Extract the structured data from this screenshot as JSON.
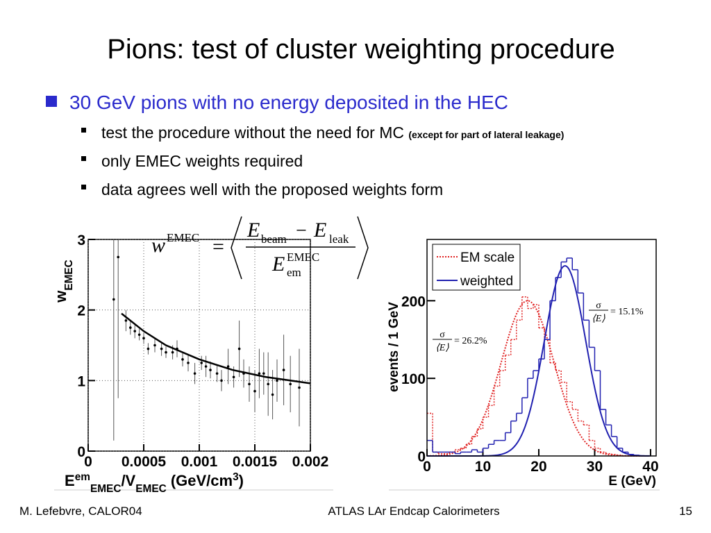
{
  "title": "Pions: test of cluster weighting procedure",
  "bullets": [
    {
      "text": "30 GeV pions with no energy deposited in the HEC",
      "children": [
        {
          "text": "test the procedure without the need for MC",
          "note": "(except for part of lateral leakage)"
        },
        {
          "text": "only EMEC weights required"
        },
        {
          "text": "data agrees well with the proposed weights form"
        }
      ]
    }
  ],
  "formula": {
    "lhs": "w",
    "lhs_sup": "EMEC",
    "eq": "=",
    "num_a": "E",
    "num_a_sub": "beam",
    "minus": "−",
    "num_b": "E",
    "num_b_sub": "leak",
    "den": "E",
    "den_sub": "em",
    "den_sup": "EMEC"
  },
  "footer": {
    "left": "M. Lefebvre, CALOR04",
    "center": "ATLAS LAr Endcap Calorimeters",
    "right": "15"
  },
  "chart_data": [
    {
      "type": "scatter",
      "xlim": [
        0,
        0.002
      ],
      "ylim": [
        0,
        3
      ],
      "xticks": [
        0,
        0.0005,
        0.001,
        0.0015,
        0.002
      ],
      "yticks": [
        0,
        1,
        2,
        3
      ],
      "grid": true,
      "color": "#000000",
      "ylabel": [
        {
          "text": "w"
        },
        {
          "text": "EMEC",
          "shift": "sub"
        }
      ],
      "xlabel": [
        {
          "text": "E"
        },
        {
          "text": "em",
          "shift": "sup"
        },
        {
          "text": "EMEC",
          "shift": "sub"
        },
        {
          "text": "/V"
        },
        {
          "text": "EMEC",
          "shift": "sub"
        },
        {
          "text": " (GeV/cm"
        },
        {
          "text": "3",
          "shift": "sup"
        },
        {
          "text": ")"
        }
      ],
      "x": [
        0.00023,
        0.00027,
        0.00034,
        0.00038,
        0.00042,
        0.00046,
        0.0005,
        0.00054,
        0.0006,
        0.00066,
        0.0007,
        0.00076,
        0.0008,
        0.00085,
        0.0009,
        0.00096,
        0.00102,
        0.00106,
        0.0011,
        0.00116,
        0.0012,
        0.00126,
        0.00131,
        0.00136,
        0.0014,
        0.00145,
        0.0015,
        0.00154,
        0.00158,
        0.00162,
        0.00166,
        0.0017,
        0.00176,
        0.00182,
        0.0019
      ],
      "values": [
        2.15,
        2.75,
        1.85,
        1.75,
        1.7,
        1.65,
        1.6,
        1.45,
        1.5,
        1.45,
        1.4,
        1.4,
        1.45,
        1.3,
        1.25,
        1.1,
        1.25,
        1.2,
        1.15,
        1.1,
        1.0,
        1.2,
        1.05,
        1.45,
        1.1,
        0.95,
        0.85,
        1.1,
        1.1,
        0.95,
        0.8,
        1.0,
        1.15,
        0.95,
        0.9
      ],
      "errors": [
        2.0,
        2.0,
        0.15,
        0.1,
        0.1,
        0.08,
        0.08,
        0.08,
        0.1,
        0.1,
        0.08,
        0.1,
        0.12,
        0.1,
        0.12,
        0.15,
        0.1,
        0.15,
        0.12,
        0.12,
        0.15,
        0.25,
        0.15,
        0.4,
        0.2,
        0.25,
        0.3,
        0.35,
        0.3,
        0.45,
        0.35,
        0.3,
        0.5,
        0.4,
        0.55
      ],
      "fit": {
        "x": [
          0.0003,
          0.0005,
          0.0007,
          0.001,
          0.0013,
          0.0016,
          0.002
        ],
        "values": [
          1.95,
          1.7,
          1.5,
          1.3,
          1.15,
          1.05,
          0.96
        ]
      }
    },
    {
      "type": "histogram",
      "xlim": [
        0,
        41
      ],
      "ylim": [
        0,
        279
      ],
      "xticks": [
        0,
        10,
        20,
        30,
        40
      ],
      "yticks": [
        0,
        100,
        200
      ],
      "ylabel": "events / 1 GeV",
      "xlabel": "E (GeV)",
      "legend": "top-left",
      "bins": [
        0,
        1,
        2,
        3,
        4,
        5,
        6,
        7,
        8,
        9,
        10,
        11,
        12,
        13,
        14,
        15,
        16,
        17,
        18,
        19,
        20,
        21,
        22,
        23,
        24,
        25,
        26,
        27,
        28,
        29,
        30,
        31,
        32,
        33,
        34,
        35,
        36,
        37,
        38,
        39,
        40
      ],
      "series": [
        {
          "name": "EM scale",
          "color": "#e02020",
          "dash": "dotted",
          "values": [
            55,
            5,
            3,
            3,
            5,
            8,
            10,
            15,
            25,
            35,
            50,
            65,
            90,
            110,
            130,
            150,
            175,
            205,
            190,
            195,
            165,
            150,
            120,
            110,
            95,
            70,
            60,
            45,
            40,
            20,
            10,
            5,
            3,
            2,
            1,
            0,
            0,
            0,
            0,
            0
          ],
          "fit": {
            "amplitude": 200,
            "mean": 18,
            "sigma": 4.7
          }
        },
        {
          "name": "weighted",
          "color": "#2020b0",
          "dash": "solid",
          "values": [
            20,
            5,
            5,
            5,
            5,
            3,
            5,
            5,
            8,
            5,
            10,
            15,
            20,
            20,
            30,
            45,
            55,
            75,
            100,
            110,
            125,
            150,
            200,
            230,
            250,
            255,
            240,
            210,
            175,
            140,
            110,
            60,
            40,
            25,
            10,
            5,
            2,
            1,
            0,
            0
          ],
          "fit": {
            "amplitude": 245,
            "mean": 24.7,
            "sigma": 3.7
          }
        }
      ],
      "annotations": [
        {
          "num": "σ",
          "den": "⟨E⟩",
          "text": "= 15.1%"
        },
        {
          "num": "σ",
          "den": "⟨E⟩",
          "text": "= 26.2%"
        }
      ]
    }
  ]
}
